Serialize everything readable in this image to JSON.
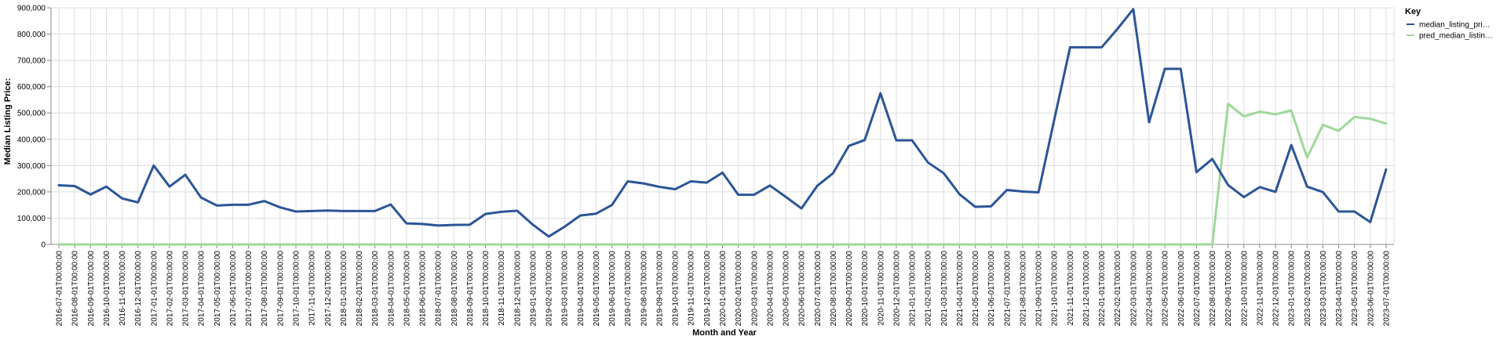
{
  "chart_data": {
    "type": "line",
    "xlabel": "Month and Year",
    "ylabel": "Median Listing Price:",
    "ylim": [
      0,
      900000
    ],
    "yticks": [
      "0",
      "100,000",
      "200,000",
      "300,000",
      "400,000",
      "500,000",
      "600,000",
      "700,000",
      "800,000",
      "900,000"
    ],
    "yticks_values": [
      0,
      100000,
      200000,
      300000,
      400000,
      500000,
      600000,
      700000,
      800000,
      900000
    ],
    "grid": true,
    "legend": {
      "title": "Key",
      "placement": "top-right",
      "entries": [
        {
          "label": "median_listing_pri…",
          "color": "#2c5597"
        },
        {
          "label": "pred_median_listin…",
          "color": "#9ed89a"
        }
      ]
    },
    "x": [
      "2016-07-01T00:00:00",
      "2016-08-01T00:00:00",
      "2016-09-01T00:00:00",
      "2016-10-01T00:00:00",
      "2016-11-01T00:00:00",
      "2016-12-01T00:00:00",
      "2017-01-01T00:00:00",
      "2017-02-01T00:00:00",
      "2017-03-01T00:00:00",
      "2017-04-01T00:00:00",
      "2017-05-01T00:00:00",
      "2017-06-01T00:00:00",
      "2017-07-01T00:00:00",
      "2017-08-01T00:00:00",
      "2017-09-01T00:00:00",
      "2017-10-01T00:00:00",
      "2017-11-01T00:00:00",
      "2017-12-01T00:00:00",
      "2018-01-01T00:00:00",
      "2018-02-01T00:00:00",
      "2018-03-01T00:00:00",
      "2018-04-01T00:00:00",
      "2018-05-01T00:00:00",
      "2018-06-01T00:00:00",
      "2018-07-01T00:00:00",
      "2018-08-01T00:00:00",
      "2018-09-01T00:00:00",
      "2018-10-01T00:00:00",
      "2018-11-01T00:00:00",
      "2018-12-01T00:00:00",
      "2019-01-01T00:00:00",
      "2019-02-01T00:00:00",
      "2019-03-01T00:00:00",
      "2019-04-01T00:00:00",
      "2019-05-01T00:00:00",
      "2019-06-01T00:00:00",
      "2019-07-01T00:00:00",
      "2019-08-01T00:00:00",
      "2019-09-01T00:00:00",
      "2019-10-01T00:00:00",
      "2019-11-01T00:00:00",
      "2019-12-01T00:00:00",
      "2020-01-01T00:00:00",
      "2020-02-01T00:00:00",
      "2020-03-01T00:00:00",
      "2020-04-01T00:00:00",
      "2020-05-01T00:00:00",
      "2020-06-01T00:00:00",
      "2020-07-01T00:00:00",
      "2020-08-01T00:00:00",
      "2020-09-01T00:00:00",
      "2020-10-01T00:00:00",
      "2020-11-01T00:00:00",
      "2020-12-01T00:00:00",
      "2021-01-01T00:00:00",
      "2021-02-01T00:00:00",
      "2021-03-01T00:00:00",
      "2021-04-01T00:00:00",
      "2021-05-01T00:00:00",
      "2021-06-01T00:00:00",
      "2021-07-01T00:00:00",
      "2021-08-01T00:00:00",
      "2021-09-01T00:00:00",
      "2021-10-01T00:00:00",
      "2021-11-01T00:00:00",
      "2021-12-01T00:00:00",
      "2022-01-01T00:00:00",
      "2022-02-01T00:00:00",
      "2022-03-01T00:00:00",
      "2022-04-01T00:00:00",
      "2022-05-01T00:00:00",
      "2022-06-01T00:00:00",
      "2022-07-01T00:00:00",
      "2022-08-01T00:00:00",
      "2022-09-01T00:00:00",
      "2022-10-01T00:00:00",
      "2022-11-01T00:00:00",
      "2022-12-01T00:00:00",
      "2023-01-01T00:00:00",
      "2023-02-01T00:00:00",
      "2023-03-01T00:00:00",
      "2023-04-01T00:00:00",
      "2023-05-01T00:00:00",
      "2023-06-01T00:00:00",
      "2023-07-01T00:00:00"
    ],
    "series": [
      {
        "name": "median_listing_pri…",
        "color": "#2c5597",
        "values": [
          225000,
          222000,
          190000,
          220000,
          175000,
          160000,
          300000,
          220000,
          265000,
          178000,
          148000,
          151000,
          151000,
          165000,
          141000,
          125000,
          127000,
          129000,
          127000,
          127000,
          127000,
          152000,
          80000,
          78000,
          72000,
          74000,
          75000,
          116000,
          124000,
          128000,
          75000,
          30000,
          67000,
          110000,
          117000,
          150000,
          240000,
          232000,
          219000,
          210000,
          240000,
          235000,
          273000,
          189000,
          189000,
          224000,
          181000,
          137000,
          223000,
          271000,
          375000,
          397000,
          575000,
          396000,
          396000,
          312000,
          271000,
          191000,
          143000,
          145000,
          207000,
          201000,
          198000,
          475000,
          750000,
          750000,
          750000,
          820000,
          895000,
          465000,
          668000,
          668000,
          275000,
          325000,
          226000,
          180000,
          218000,
          200000,
          378000,
          220000,
          199000,
          125000,
          125000,
          85000,
          285000
        ]
      },
      {
        "name": "pred_median_listin…",
        "color": "#9ed89a",
        "values": [
          0,
          0,
          0,
          0,
          0,
          0,
          0,
          0,
          0,
          0,
          0,
          0,
          0,
          0,
          0,
          0,
          0,
          0,
          0,
          0,
          0,
          0,
          0,
          0,
          0,
          0,
          0,
          0,
          0,
          0,
          0,
          0,
          0,
          0,
          0,
          0,
          0,
          0,
          0,
          0,
          0,
          0,
          0,
          0,
          0,
          0,
          0,
          0,
          0,
          0,
          0,
          0,
          0,
          0,
          0,
          0,
          0,
          0,
          0,
          0,
          0,
          0,
          0,
          0,
          0,
          0,
          0,
          0,
          0,
          0,
          0,
          0,
          0,
          0,
          535000,
          487000,
          505000,
          495000,
          510000,
          330000,
          455000,
          432000,
          485000,
          478000,
          460000
        ]
      }
    ]
  }
}
